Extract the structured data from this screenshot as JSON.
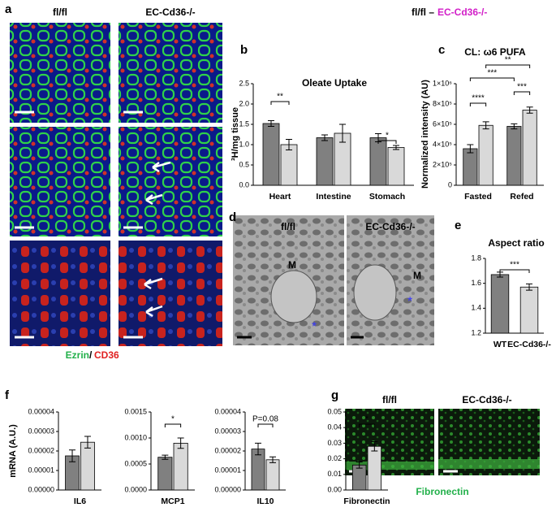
{
  "figure": {
    "panel_letters": [
      "a",
      "b",
      "c",
      "d",
      "e",
      "f",
      "g"
    ],
    "header_left": "fl/fl –",
    "header_right": "EC-Cd36-/-",
    "a_col1": "fl/fl",
    "a_col2": "EC-Cd36-/-",
    "a_stain_1": "Ezrin",
    "a_stain_sep": "/",
    "a_stain_2": "CD36",
    "d_col1": "fl/fl",
    "d_col2": "EC-Cd36-/-",
    "d_marker_1": "M",
    "d_marker_2": "M",
    "g_col1": "fl/fl",
    "g_col2": "EC-Cd36-/-",
    "g_stain": "Fibronectin"
  },
  "chart_data": [
    {
      "type": "bar",
      "title": "Oleate Uptake",
      "ylabel": "³H/mg tissue",
      "categories": [
        "Heart",
        "Intestine",
        "Stomach"
      ],
      "series": [
        {
          "color": "#808080",
          "values": [
            1.52,
            1.17,
            1.17
          ],
          "errors": [
            0.07,
            0.07,
            0.1
          ]
        },
        {
          "color": "#d9d9d9",
          "values": [
            1.0,
            1.28,
            0.93
          ],
          "errors": [
            0.13,
            0.22,
            0.05
          ]
        }
      ],
      "ylim": [
        0,
        2.5
      ],
      "yticks": [
        {
          "value": 0,
          "label": "0.0"
        },
        {
          "value": 0.5,
          "label": "0.5"
        },
        {
          "value": 1,
          "label": "1.0"
        },
        {
          "value": 1.5,
          "label": "1.5"
        },
        {
          "value": 2,
          "label": "2.0"
        },
        {
          "value": 2.5,
          "label": "2.5"
        }
      ],
      "annotations": [
        "**",
        "*"
      ]
    },
    {
      "type": "bar",
      "title": "CL: ω6 PUFA",
      "ylabel": "Normalized intensity (AU)",
      "categories": [
        "Fasted",
        "Refed"
      ],
      "series": [
        {
          "color": "#808080",
          "values": [
            360000,
            580000
          ],
          "errors": [
            40000,
            25000
          ]
        },
        {
          "color": "#d9d9d9",
          "values": [
            590000,
            740000
          ],
          "errors": [
            35000,
            30000
          ]
        }
      ],
      "ylim": [
        0,
        1000000
      ],
      "yticks": [
        0,
        {
          "value": 200000,
          "label": "2×10⁵"
        },
        {
          "value": 400000,
          "label": "4×10⁵"
        },
        {
          "value": 600000,
          "label": "6×10⁵"
        },
        {
          "value": 800000,
          "label": "8×10⁵"
        },
        {
          "value": 1000000,
          "label": "1×10⁶"
        }
      ],
      "annotations": [
        "**",
        "***",
        "****",
        "***"
      ]
    },
    {
      "type": "bar",
      "title": "Aspect ratio",
      "categories": [
        "WT",
        "EC-Cd36-/-"
      ],
      "series": [
        {
          "colors": [
            "#808080",
            "#d9d9d9"
          ],
          "values": [
            1.67,
            1.57
          ],
          "errors": [
            0.02,
            0.025
          ]
        }
      ],
      "ylim": [
        1.2,
        1.8
      ],
      "yticks": [
        1.2,
        1.4,
        1.6,
        1.8
      ],
      "annotations": [
        "***"
      ]
    },
    {
      "type": "bar",
      "ylabel": "mRNA (A.U.)",
      "categories": [
        "IL6"
      ],
      "series": [
        {
          "color": "#808080",
          "values": [
            1.75e-05
          ],
          "errors": [
            3e-06
          ]
        },
        {
          "color": "#d9d9d9",
          "values": [
            2.45e-05
          ],
          "errors": [
            3e-06
          ]
        }
      ],
      "ylim": [
        0,
        4e-05
      ],
      "yticks": [
        {
          "value": 0,
          "label": "0.00000"
        },
        {
          "value": 1e-05,
          "label": "0.00001"
        },
        {
          "value": 2e-05,
          "label": "0.00002"
        },
        {
          "value": 3e-05,
          "label": "0.00003"
        },
        {
          "value": 4e-05,
          "label": "0.00004"
        }
      ],
      "annotations": []
    },
    {
      "type": "bar",
      "categories": [
        "MCP1"
      ],
      "series": [
        {
          "color": "#808080",
          "values": [
            0.00063
          ],
          "errors": [
            4e-05
          ]
        },
        {
          "color": "#d9d9d9",
          "values": [
            0.0009
          ],
          "errors": [
            0.0001
          ]
        }
      ],
      "ylim": [
        0,
        0.0015
      ],
      "yticks": [
        {
          "value": 0,
          "label": "0.0000"
        },
        {
          "value": 0.0005,
          "label": "0.0005"
        },
        {
          "value": 0.001,
          "label": "0.0010"
        },
        {
          "value": 0.0015,
          "label": "0.0015"
        }
      ],
      "annotations": [
        "*"
      ]
    },
    {
      "type": "bar",
      "categories": [
        "IL10"
      ],
      "series": [
        {
          "color": "#808080",
          "values": [
            2.1e-05
          ],
          "errors": [
            3e-06
          ]
        },
        {
          "color": "#d9d9d9",
          "values": [
            1.55e-05
          ],
          "errors": [
            1.5e-06
          ]
        }
      ],
      "ylim": [
        0,
        4e-05
      ],
      "yticks": [
        {
          "value": 0,
          "label": "0.00000"
        },
        {
          "value": 1e-05,
          "label": "0.00001"
        },
        {
          "value": 2e-05,
          "label": "0.00002"
        },
        {
          "value": 3e-05,
          "label": "0.00003"
        },
        {
          "value": 4e-05,
          "label": "0.00004"
        }
      ],
      "annotations": [
        "P=0.08"
      ]
    },
    {
      "type": "bar",
      "categories": [
        "Fibronectin"
      ],
      "series": [
        {
          "color": "#808080",
          "values": [
            0.016
          ],
          "errors": [
            0.002
          ]
        },
        {
          "color": "#d9d9d9",
          "values": [
            0.028
          ],
          "errors": [
            0.003
          ]
        }
      ],
      "ylim": [
        0,
        0.05
      ],
      "yticks": [
        {
          "value": 0,
          "label": "0.00"
        },
        {
          "value": 0.01,
          "label": "0.01"
        },
        {
          "value": 0.02,
          "label": "0.02"
        },
        {
          "value": 0.03,
          "label": "0.03"
        },
        {
          "value": 0.04,
          "label": "0.04"
        },
        {
          "value": 0.05,
          "label": "0.05"
        }
      ],
      "annotations": [
        "*"
      ]
    }
  ]
}
